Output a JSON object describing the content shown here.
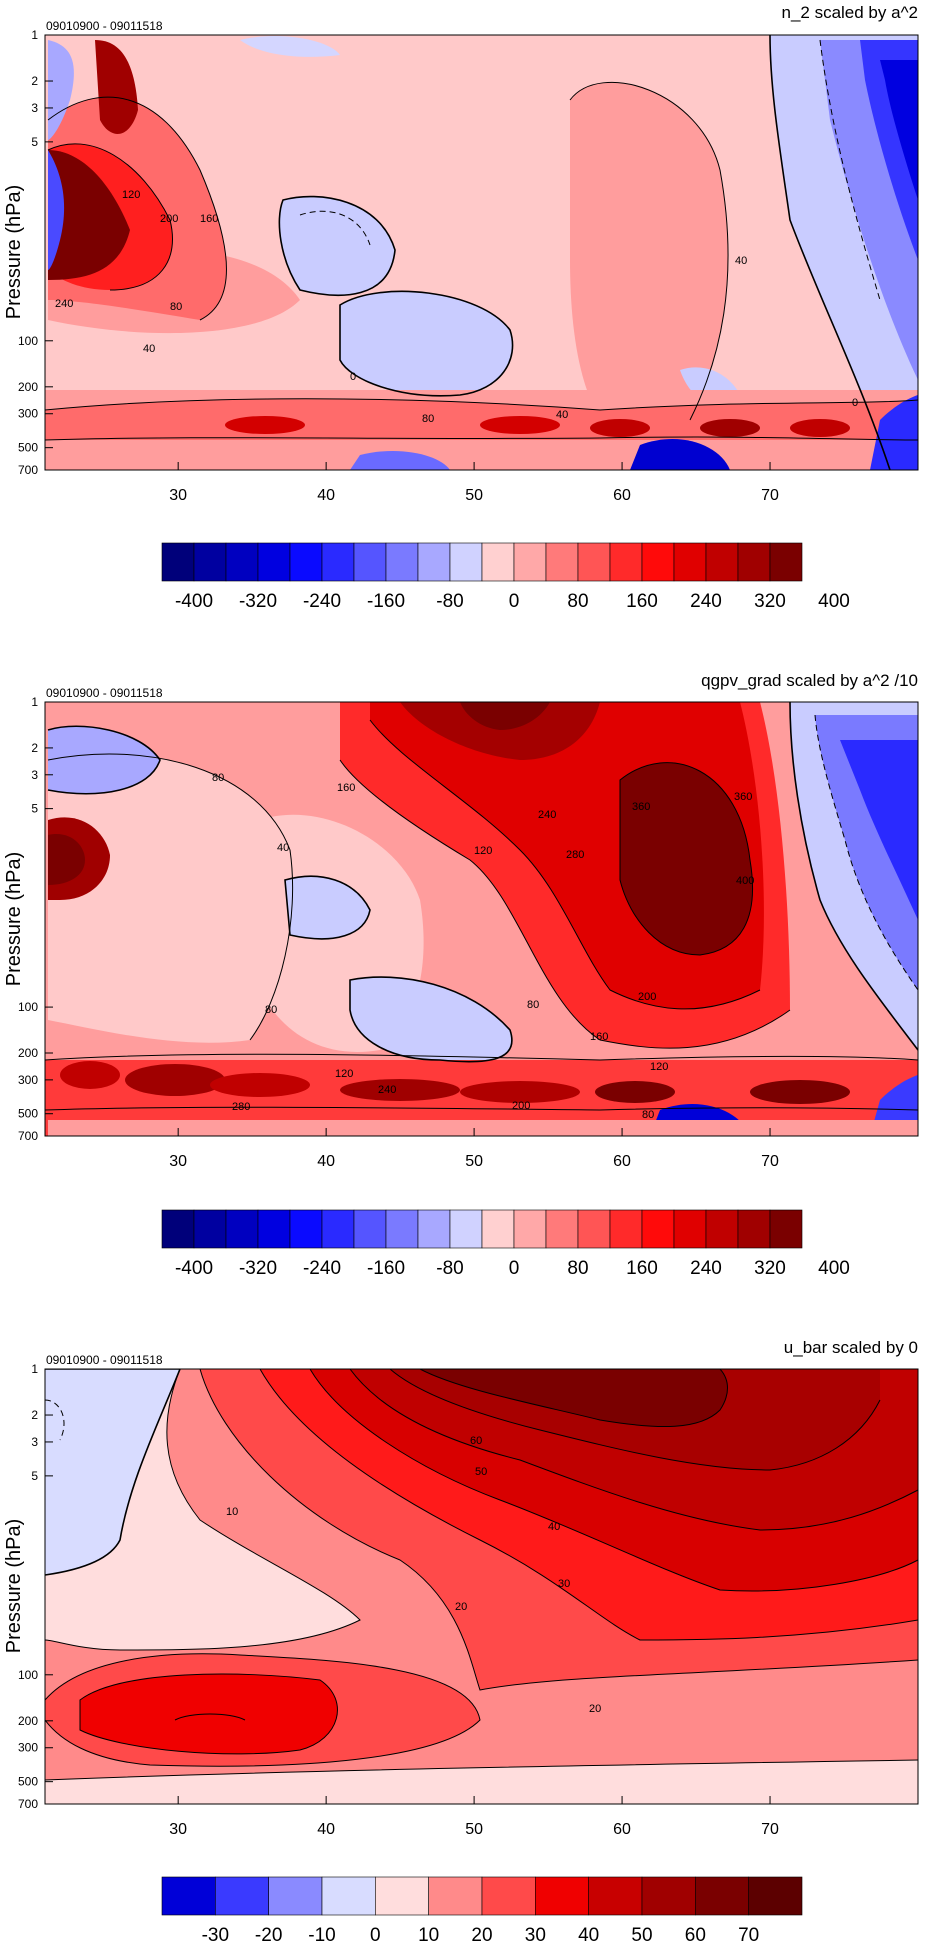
{
  "chart_data": [
    {
      "type": "heatmap",
      "title": "n_2 scaled by a^2",
      "date_range": "09010900 - 09011518",
      "ylabel": "Pressure (hPa)",
      "xticks": [
        30,
        40,
        50,
        60,
        70
      ],
      "xlim": [
        21,
        80
      ],
      "yticks": [
        1,
        2,
        3,
        5,
        100,
        200,
        300,
        500,
        700
      ],
      "ylim": [
        1,
        700
      ],
      "y_scale": "log",
      "colorbar_labels": [
        "-400",
        "-320",
        "-240",
        "-160",
        "-80",
        "0",
        "80",
        "160",
        "240",
        "320",
        "400"
      ],
      "contour_labels": [
        "120",
        "200",
        "160",
        "240",
        "80",
        "40",
        "0",
        "80",
        "40",
        "40",
        "0"
      ]
    },
    {
      "type": "heatmap",
      "title": "qgpv_grad scaled by a^2 /10",
      "date_range": "09010900 - 09011518",
      "ylabel": "Pressure (hPa)",
      "xticks": [
        30,
        40,
        50,
        60,
        70
      ],
      "xlim": [
        21,
        80
      ],
      "yticks": [
        1,
        2,
        3,
        5,
        100,
        200,
        300,
        500,
        700
      ],
      "ylim": [
        1,
        700
      ],
      "y_scale": "log",
      "colorbar_labels": [
        "-400",
        "-320",
        "-240",
        "-160",
        "-80",
        "0",
        "80",
        "160",
        "240",
        "320",
        "400"
      ],
      "contour_labels": [
        "80",
        "160",
        "40",
        "120",
        "240",
        "280",
        "360",
        "360",
        "400",
        "80",
        "80",
        "160",
        "200",
        "120",
        "120",
        "240",
        "200",
        "280",
        "80"
      ]
    },
    {
      "type": "heatmap",
      "title": "u_bar scaled by 0",
      "date_range": "09010900 - 09011518",
      "ylabel": "Pressure (hPa)",
      "xticks": [
        30,
        40,
        50,
        60,
        70
      ],
      "xlim": [
        21,
        80
      ],
      "yticks": [
        1,
        2,
        3,
        5,
        100,
        200,
        300,
        500,
        700
      ],
      "ylim": [
        1,
        700
      ],
      "y_scale": "log",
      "colorbar_labels": [
        "-30",
        "-20",
        "-10",
        "0",
        "10",
        "20",
        "30",
        "40",
        "50",
        "60",
        "70"
      ],
      "contour_labels": [
        "60",
        "50",
        "10",
        "40",
        "30",
        "20",
        "20"
      ]
    }
  ]
}
